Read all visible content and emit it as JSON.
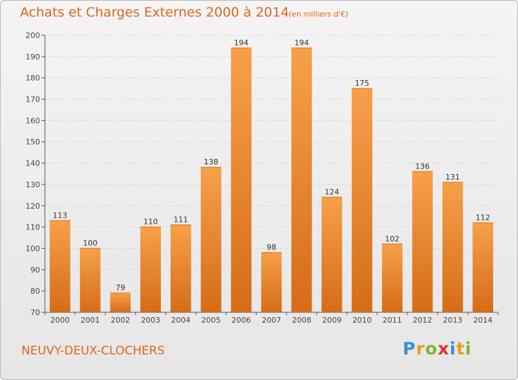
{
  "chart_data": {
    "type": "bar",
    "title": "Achats et Charges Externes 2000 à 2014",
    "subtitle": "(en milliers d'€)",
    "categories": [
      "2000",
      "2001",
      "2002",
      "2003",
      "2004",
      "2005",
      "2006",
      "2007",
      "2008",
      "2009",
      "2010",
      "2011",
      "2012",
      "2013",
      "2014"
    ],
    "values": [
      113,
      100,
      79,
      110,
      111,
      138,
      194,
      98,
      194,
      124,
      175,
      102,
      136,
      131,
      112
    ],
    "ylim": [
      70,
      200
    ],
    "yticks": [
      70,
      80,
      90,
      100,
      110,
      120,
      130,
      140,
      150,
      160,
      170,
      180,
      190,
      200
    ],
    "grid": true,
    "bar_color": "#f5953a",
    "bar_color_dark": "#d9701d"
  },
  "commune": "NEUVY-DEUX-CLOCHERS",
  "logo": {
    "text": "Proxiti",
    "colors": [
      "#3a8fd6",
      "#f29a1e",
      "#7ab82e",
      "#e2302a",
      "#f29a1e"
    ]
  }
}
